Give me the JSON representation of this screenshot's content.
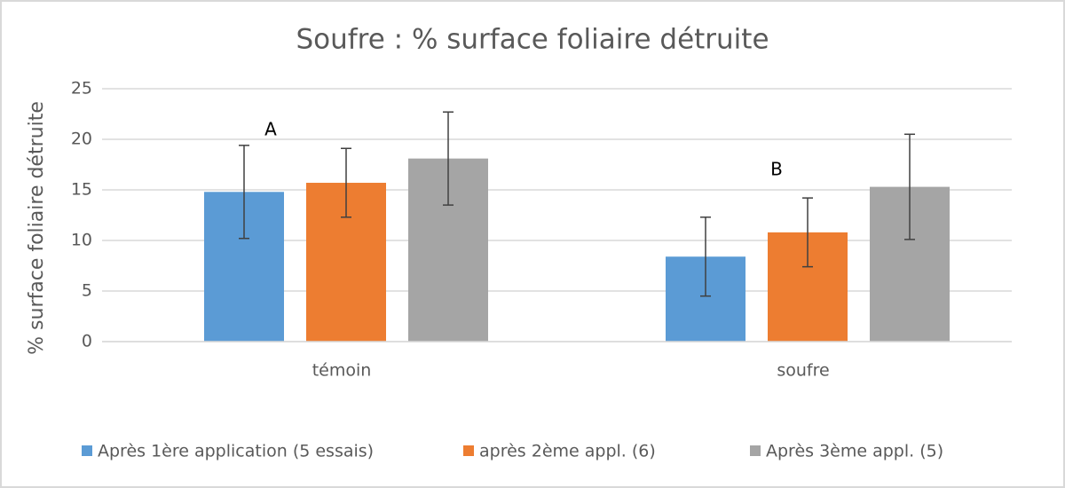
{
  "chart_data": {
    "type": "bar",
    "title": "Soufre : % surface foliaire détruite",
    "y_label": "% surface foliaire détruite",
    "categories": [
      "témoin",
      "soufre"
    ],
    "series": [
      {
        "name": "Après 1ère application (5 essais)",
        "color": "#5b9bd5",
        "values": [
          14.8,
          8.4
        ],
        "errors": [
          4.6,
          3.9
        ]
      },
      {
        "name": "après 2ème appl. (6)",
        "color": "#ed7d31",
        "values": [
          15.7,
          10.8
        ],
        "errors": [
          3.4,
          3.4
        ]
      },
      {
        "name": "Après 3ème appl. (5)",
        "color": "#a5a5a5",
        "values": [
          18.1,
          15.3
        ],
        "errors": [
          4.6,
          5.2
        ]
      }
    ],
    "annotations": [
      "A",
      "B"
    ],
    "ylim": [
      0,
      25
    ],
    "yticks": [
      0,
      5,
      10,
      15,
      20,
      25
    ],
    "grid": true,
    "legend": "bottom"
  }
}
